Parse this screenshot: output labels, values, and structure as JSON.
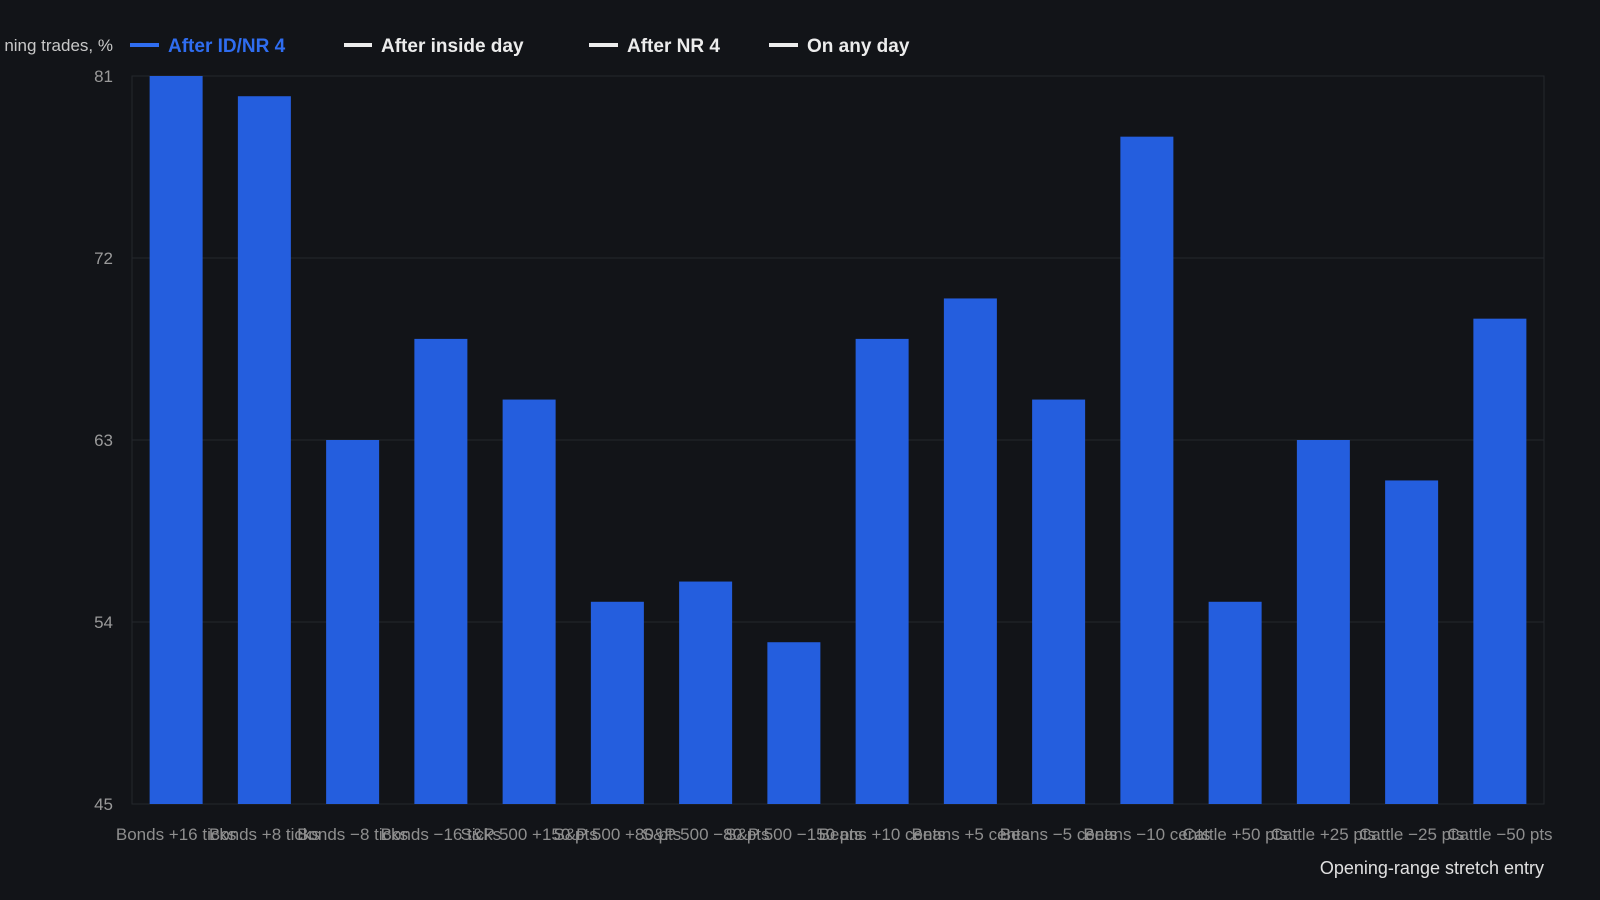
{
  "colors": {
    "background": "#121418",
    "bar": "#245ede",
    "legend_active": "#2f6df0",
    "legend_inactive": "#ececec",
    "grid": "#24272d",
    "tick_text": "#9a9a9a"
  },
  "chart_data": {
    "type": "bar",
    "ylabel": "ning trades, %",
    "xlabel": "Opening-range stretch entry",
    "ylim": [
      45,
      81
    ],
    "yticks": [
      45,
      54,
      63,
      72,
      81
    ],
    "grid": true,
    "legend_placement": "top",
    "legend": [
      {
        "label": "After ID/NR 4",
        "active": true
      },
      {
        "label": "After inside day",
        "active": false
      },
      {
        "label": "After NR 4",
        "active": false
      },
      {
        "label": "On any day",
        "active": false
      }
    ],
    "categories": [
      "Bonds +16 ticks",
      "Bonds +8 ticks",
      "Bonds −8 ticks",
      "Bonds −16 ticks",
      "S&P 500 +150 pts",
      "S&P 500 +80 pts",
      "S&P 500 −80 pts",
      "S&P 500 −150 pts",
      "Beans +10 cents",
      "Beans +5 cents",
      "Beans −5 cents",
      "Beans −10 cents",
      "Cattle +50 pts",
      "Cattle +25 pts",
      "Cattle −25 pts",
      "Cattle −50 pts"
    ],
    "series": [
      {
        "name": "After ID/NR 4",
        "values": [
          81,
          80,
          63,
          68,
          65,
          55,
          56,
          53,
          68,
          70,
          65,
          78,
          55,
          63,
          61,
          69
        ]
      }
    ]
  }
}
